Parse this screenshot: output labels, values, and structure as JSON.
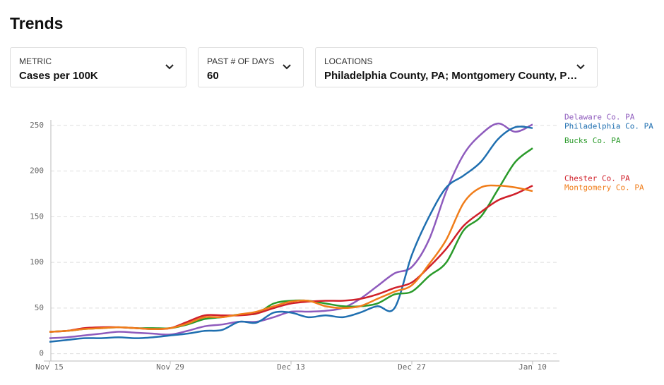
{
  "header": {
    "title": "Trends"
  },
  "controls": [
    {
      "label": "METRIC",
      "value": "Cases per 100K"
    },
    {
      "label": "PAST # OF DAYS",
      "value": "60"
    },
    {
      "label": "LOCATIONS",
      "value": "Philadelphia County, PA; Montgomery County, P…"
    }
  ],
  "chart_data": {
    "type": "line",
    "categories": [
      "Nov 15",
      null,
      null,
      null,
      null,
      null,
      null,
      "Nov 29",
      null,
      null,
      null,
      null,
      null,
      null,
      "Dec 13",
      null,
      null,
      null,
      null,
      null,
      null,
      "Dec 27",
      null,
      null,
      null,
      null,
      null,
      null,
      "Jan 10"
    ],
    "ylim": [
      -8,
      256
    ],
    "yticks": [
      0,
      50,
      100,
      150,
      200,
      250
    ],
    "grid": true,
    "series": [
      {
        "name": "Delaware Co. PA",
        "color": "#8e5bbd",
        "values": [
          17,
          18,
          20,
          22,
          24,
          23,
          22,
          21,
          25,
          30,
          32,
          35,
          35,
          40,
          46,
          46,
          47,
          50,
          60,
          74,
          88,
          95,
          125,
          178,
          218,
          240,
          252,
          243,
          251
        ]
      },
      {
        "name": "Philadelphia Co. PA",
        "color": "#1f6fb0",
        "values": [
          13,
          15,
          17,
          17,
          18,
          17,
          18,
          20,
          22,
          25,
          26,
          35,
          34,
          45,
          45,
          40,
          42,
          40,
          45,
          52,
          50,
          108,
          150,
          182,
          195,
          210,
          235,
          248,
          247
        ]
      },
      {
        "name": "Bucks Co. PA",
        "color": "#2a9a2a",
        "values": [
          24,
          25,
          27,
          28,
          29,
          28,
          28,
          28,
          32,
          38,
          40,
          43,
          44,
          55,
          58,
          58,
          55,
          52,
          52,
          55,
          65,
          68,
          85,
          100,
          135,
          150,
          180,
          210,
          225
        ]
      },
      {
        "name": "Chester Co. PA",
        "color": "#d0202a",
        "values": [
          24,
          25,
          28,
          29,
          29,
          28,
          27,
          28,
          35,
          42,
          42,
          42,
          44,
          50,
          55,
          57,
          58,
          58,
          60,
          65,
          72,
          78,
          95,
          115,
          140,
          155,
          168,
          175,
          184
        ]
      },
      {
        "name": "Montgomery Co. PA",
        "color": "#f07d1a",
        "values": [
          24,
          25,
          27,
          28,
          29,
          28,
          27,
          28,
          33,
          40,
          40,
          43,
          46,
          52,
          57,
          58,
          52,
          50,
          52,
          60,
          68,
          75,
          98,
          125,
          165,
          182,
          184,
          182,
          178
        ]
      }
    ]
  }
}
